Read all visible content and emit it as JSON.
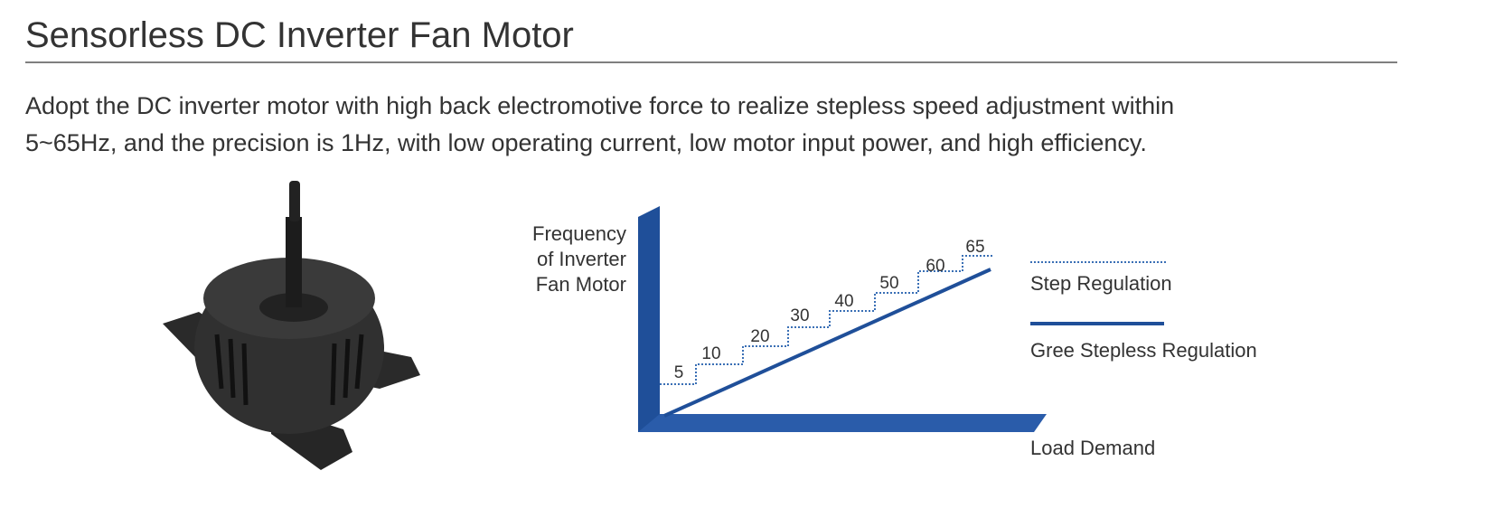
{
  "header": {
    "title": "Sensorless DC Inverter Fan Motor"
  },
  "description": {
    "lines": [
      "Adopt the DC inverter motor with high back electromotive force to realize stepless speed adjustment within",
      "5~65Hz, and the precision is 1Hz, with low operating current, low motor input power, and high efficiency."
    ]
  },
  "diagram": {
    "y_axis_label": [
      "Frequency",
      "of Inverter",
      "Fan Motor"
    ],
    "x_axis_label": "Load Demand",
    "step_labels": [
      5,
      10,
      20,
      30,
      40,
      50,
      60,
      65
    ],
    "legend": [
      "Step Regulation",
      "Gree Stepless Regulation"
    ]
  }
}
